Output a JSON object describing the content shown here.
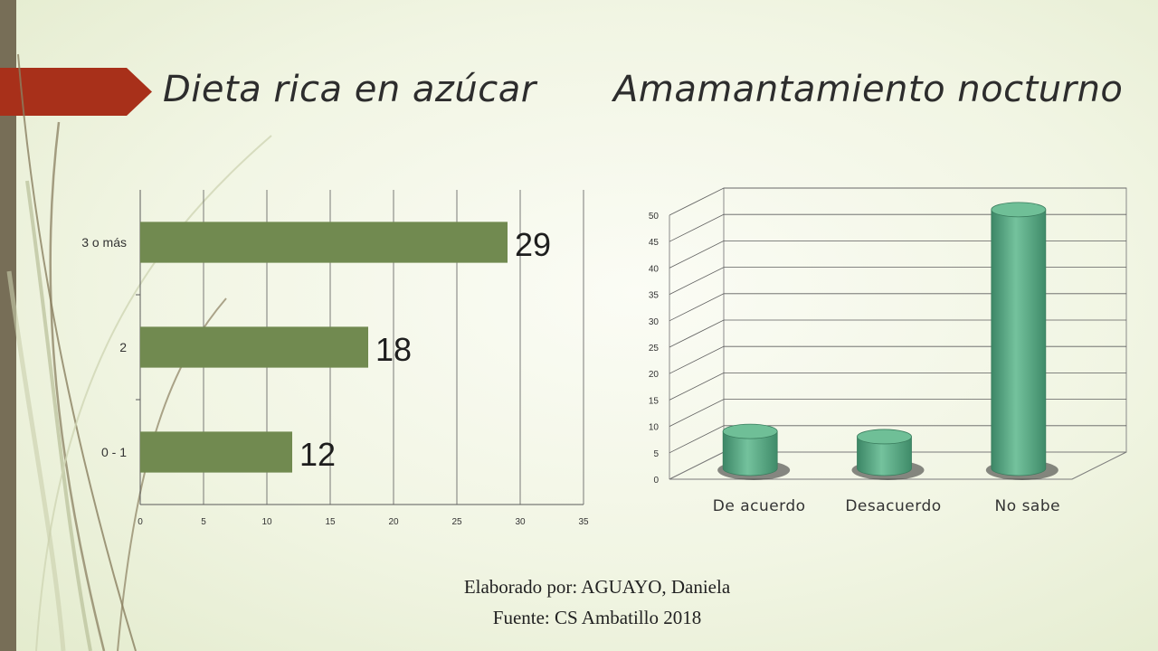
{
  "slide": {
    "title_left": "Dieta rica en azúcar",
    "title_right": "Amamantamiento nocturno",
    "source_line1": "Elaborado por: AGUAYO, Daniela",
    "source_line2": "Fuente: CS Ambatillo 2018",
    "colors": {
      "accent_arrow": "#a8301a",
      "left_bar": "#776e57",
      "bar_green": "#718a50",
      "cylinder_green": "#5aa883"
    }
  },
  "chart_data": [
    {
      "type": "bar",
      "orientation": "horizontal",
      "categories": [
        "3 o más",
        "2",
        "0 - 1"
      ],
      "values": [
        29,
        18,
        12
      ],
      "data_labels": [
        "29",
        "18",
        "12"
      ],
      "xlim": [
        0,
        35
      ],
      "xticks": [
        "0",
        "5",
        "10",
        "15",
        "20",
        "25",
        "30",
        "35"
      ],
      "grid": true,
      "color": "#718a50"
    },
    {
      "type": "bar",
      "style": "3d-cylinder",
      "categories": [
        "De acuerdo",
        "Desacuerdo",
        "No sabe"
      ],
      "values": [
        7,
        6,
        49
      ],
      "ylim": [
        0,
        50
      ],
      "yticks": [
        "0",
        "5",
        "10",
        "15",
        "20",
        "25",
        "30",
        "35",
        "40",
        "45",
        "50"
      ],
      "grid": true,
      "color": "#5aa883"
    }
  ]
}
